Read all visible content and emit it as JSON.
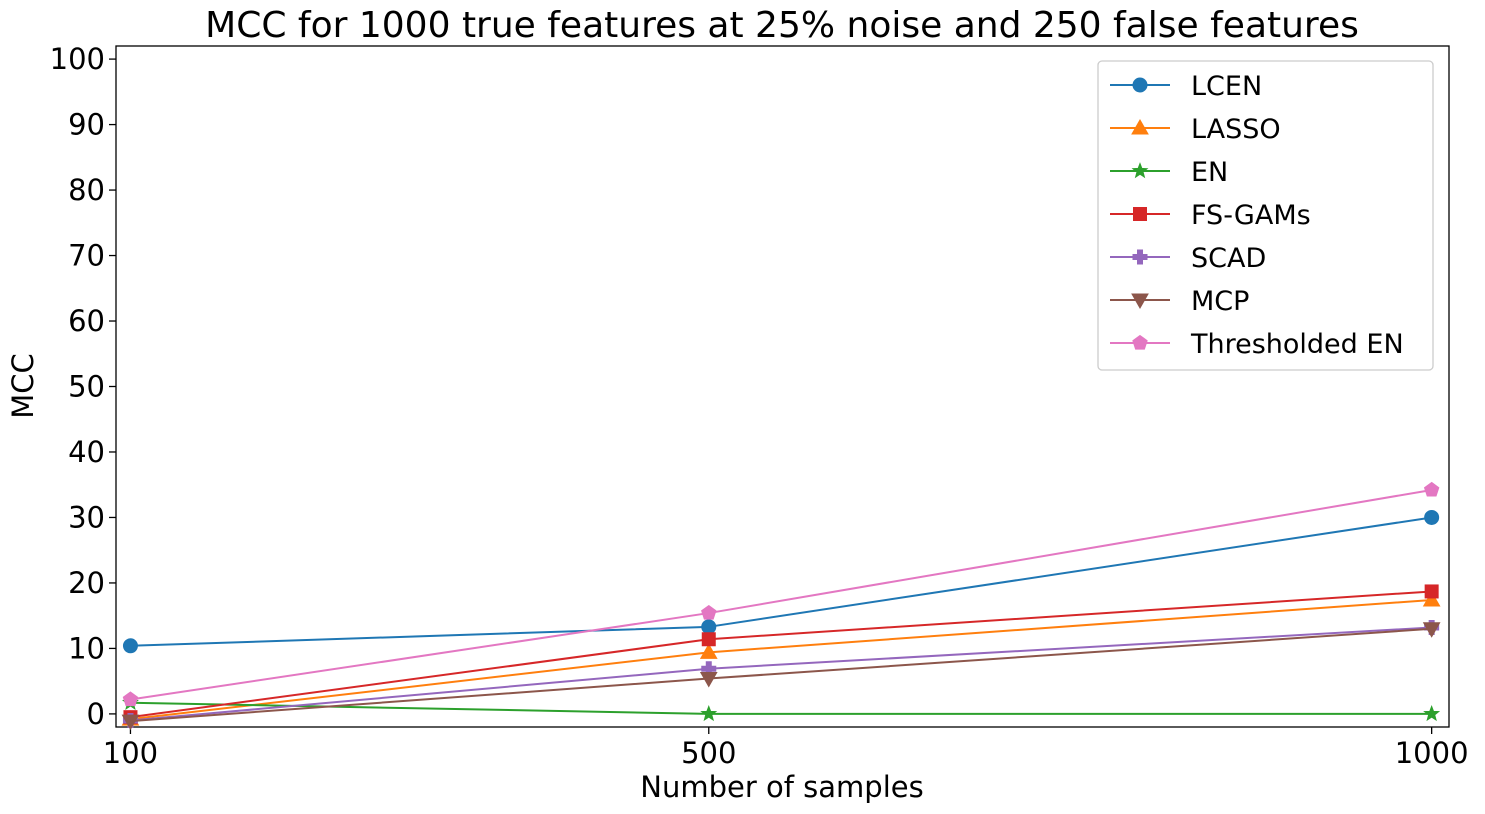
{
  "chart_data": {
    "type": "line",
    "title": "MCC for 1000 true features at 25% noise and 250 false features",
    "xlabel": "Number of samples",
    "ylabel": "MCC",
    "x": [
      100,
      500,
      1000
    ],
    "x_tick_labels": [
      "100",
      "500",
      "1000"
    ],
    "y_ticks": [
      0,
      10,
      20,
      30,
      40,
      50,
      60,
      70,
      80,
      90,
      100
    ],
    "xlim": [
      90,
      1012
    ],
    "ylim": [
      -2,
      102
    ],
    "grid": false,
    "legend_position": "upper right",
    "series": [
      {
        "name": "LCEN",
        "color": "#1f77b4",
        "marker": "circle",
        "values": [
          10.4,
          13.3,
          30.0
        ]
      },
      {
        "name": "LASSO",
        "color": "#ff7f0e",
        "marker": "triangle-up",
        "values": [
          -0.8,
          9.4,
          17.4
        ]
      },
      {
        "name": "EN",
        "color": "#2ca02c",
        "marker": "star",
        "values": [
          1.7,
          0.0,
          0.0
        ]
      },
      {
        "name": "FS-GAMs",
        "color": "#d62728",
        "marker": "square",
        "values": [
          -0.5,
          11.4,
          18.7
        ]
      },
      {
        "name": "SCAD",
        "color": "#9467bd",
        "marker": "plus",
        "values": [
          -1.0,
          6.9,
          13.2
        ]
      },
      {
        "name": "MCP",
        "color": "#8c564b",
        "marker": "triangle-down",
        "values": [
          -1.1,
          5.4,
          13.0
        ]
      },
      {
        "name": "Thresholded EN",
        "color": "#e377c2",
        "marker": "pentagon",
        "values": [
          2.2,
          15.4,
          34.2
        ]
      }
    ]
  }
}
